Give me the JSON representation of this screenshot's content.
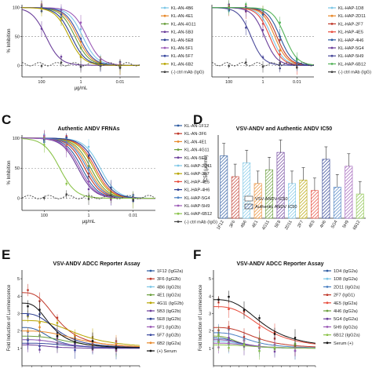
{
  "chart_data": [
    {
      "id": "A",
      "type": "line",
      "ylabel": "% Inhibition",
      "xlabel": "μg/mL",
      "x_log": true,
      "x_ticks": [
        "100",
        "1",
        "0.01"
      ],
      "y_ticks": [
        "100",
        "50",
        "0"
      ],
      "ylim": [
        -20,
        105
      ],
      "dashed_y": [
        50,
        0
      ],
      "legend": [
        "KL-AN-4B6",
        "KL-AN-4E1",
        "KL-AN-4G11",
        "KL-AN-5B3",
        "KL-AN-5E8",
        "KL-AN-5F1",
        "KL-AN-5F7",
        "KL-AN-6B2",
        "(-) ctrl mAb (IgG)"
      ],
      "colors": [
        "#7cc6e6",
        "#e8892b",
        "#6a9f3d",
        "#6a3d9a",
        "#2c3e91",
        "#9b59b6",
        "#3a4aa0",
        "#b8a500",
        "#444444"
      ],
      "series_ic50": [
        0.8,
        1.5,
        2.0,
        60,
        3.0,
        0.5,
        1.2,
        4.0,
        null
      ]
    },
    {
      "id": "B",
      "type": "line",
      "x_log": true,
      "x_ticks": [
        "100",
        "1",
        "0.01"
      ],
      "ylim": [
        -20,
        105
      ],
      "dashed_y": [
        50,
        0
      ],
      "legend": [
        "KL-HAP-1D8",
        "KL-HAP-2D11",
        "KL-HAP-2F7",
        "KL-HAP-4E5",
        "KL-HAP-4H6",
        "KL-HAP-5G4",
        "KL-HAP-5H9",
        "KL-HAP-6B12",
        "(-) ctrl mAb (IgG)"
      ],
      "colors": [
        "#7cc6e6",
        "#e8892b",
        "#c0392b",
        "#e74c3c",
        "#2c5aa0",
        "#6a3d9a",
        "#4a4a9a",
        "#55b35a",
        "#444444"
      ],
      "series_ic50": [
        0.3,
        0.2,
        0.15,
        0.4,
        0.1,
        0.8,
        5,
        0.05,
        null
      ]
    },
    {
      "id": "C",
      "type": "line",
      "title": "Authentic ANDV FRNAs",
      "ylabel": "% Inhibition",
      "xlabel": "μg/mL",
      "x_log": true,
      "x_ticks": [
        "100",
        "1",
        "0.01"
      ],
      "y_ticks": [
        "100",
        "50",
        "0"
      ],
      "ylim": [
        -20,
        105
      ],
      "dashed_y": [
        50,
        0
      ],
      "legend": [
        "KL-AN-1F12",
        "KL-AN-3F6",
        "KL-AN-4E1",
        "KL-AN-4G11",
        "KL-AN-5E8",
        "KL-HAP-2D11",
        "KL-HAP-2F7",
        "KL-HAP-4E5",
        "KL-HAP-4H6",
        "KL-HAP-5G4",
        "KL-HAP-5H9",
        "KL-HAP-6B12",
        "(-) ctrl mAb (IgG)"
      ],
      "colors": [
        "#2c5aa0",
        "#c0392b",
        "#e8892b",
        "#6a9f3d",
        "#6a3d9a",
        "#7cc6e6",
        "#b8a500",
        "#e74c3c",
        "#2c3e91",
        "#4a7fc1",
        "#9b59b6",
        "#8bc34a",
        "#444444"
      ],
      "series_ic50": [
        2,
        1.5,
        1,
        0.8,
        3,
        0.3,
        0.6,
        0.5,
        0.4,
        1.2,
        2.5,
        20,
        null
      ]
    },
    {
      "id": "D",
      "type": "bar",
      "title": "VSV-ANDV and Authentic ANDV IC50",
      "ylabel": "IC50 (μg/mL)",
      "categories": [
        "1F12",
        "3F6",
        "4B6",
        "4E1",
        "4G11",
        "5E8",
        "2D11",
        "2F7",
        "4E5",
        "4H6",
        "5G4",
        "5H9",
        "6B12"
      ],
      "legend": [
        "VSV-ANDV IC50",
        "Authentic ANDV IC50"
      ],
      "colors": [
        "#2c5aa0",
        "#c0392b",
        "#7cc6e6",
        "#e8892b",
        "#6a9f3d",
        "#6a3d9a",
        "#7cc6e6",
        "#b8a500",
        "#e74c3c",
        "#2c3e91",
        "#4a7fc1",
        "#9b59b6",
        "#8bc34a"
      ],
      "values": [
        0.9,
        0.6,
        0.8,
        0.5,
        0.7,
        0.95,
        0.5,
        0.55,
        0.4,
        0.85,
        0.45,
        0.75,
        0.35
      ],
      "ylim": [
        0,
        1.2
      ]
    },
    {
      "id": "E",
      "type": "line",
      "title": "VSV-ANDV ADCC Reporter Assay",
      "ylabel": "Fold Induction of Luminescence",
      "y_ticks": [
        "5",
        "4",
        "3",
        "2",
        "1"
      ],
      "ylim": [
        0,
        5.5
      ],
      "legend": [
        "1F12 (IgG2a)",
        "3F6 (IgG2b)",
        "4B6 (IgG2b)",
        "4E1 (IgG2a)",
        "4G11 (IgG2b)",
        "5B3 (IgG2b)",
        "5E8 (IgG2b)",
        "5F1 (IgG2b)",
        "5F7 (IgG2b)",
        "6B2 (IgG2a)",
        "(+) Serum"
      ],
      "colors": [
        "#2c5aa0",
        "#c0392b",
        "#7cc6e6",
        "#6a9f3d",
        "#b8a500",
        "#6a3d9a",
        "#2c3e91",
        "#9b59b6",
        "#3a4aa0",
        "#e8892b",
        "#111111"
      ],
      "peaks": [
        2.2,
        4.2,
        1.5,
        1.7,
        2.6,
        1.2,
        3.0,
        1.5,
        1.3,
        2.0,
        3.6
      ]
    },
    {
      "id": "F",
      "type": "line",
      "title": "VSV-ANDV ADCC Reporter Assay",
      "ylabel": "Fold Induction of Luminescence",
      "y_ticks": [
        "5",
        "4",
        "3",
        "2",
        "1"
      ],
      "ylim": [
        0,
        5.5
      ],
      "legend": [
        "1D4 (IgG2a)",
        "1D8 (IgG2a)",
        "2D11 (IgG2a)",
        "2F7 (IgG1)",
        "4E5 (IgG2a)",
        "4H6 (IgG2a)",
        "5G4 (IgG2a)",
        "5H9 (IgG2a)",
        "6B12 (IgG2a)",
        "Serum (+)"
      ],
      "colors": [
        "#2c5aa0",
        "#7cc6e6",
        "#4a7fc1",
        "#c0392b",
        "#e74c3c",
        "#6a9f3d",
        "#6a3d9a",
        "#9b59b6",
        "#8bc34a",
        "#111111"
      ],
      "peaks": [
        1.6,
        1.4,
        1.9,
        2.2,
        3.4,
        1.7,
        1.5,
        1.3,
        1.2,
        3.8
      ]
    }
  ],
  "panel_labels": [
    "A",
    "B",
    "C",
    "D",
    "E",
    "F"
  ]
}
